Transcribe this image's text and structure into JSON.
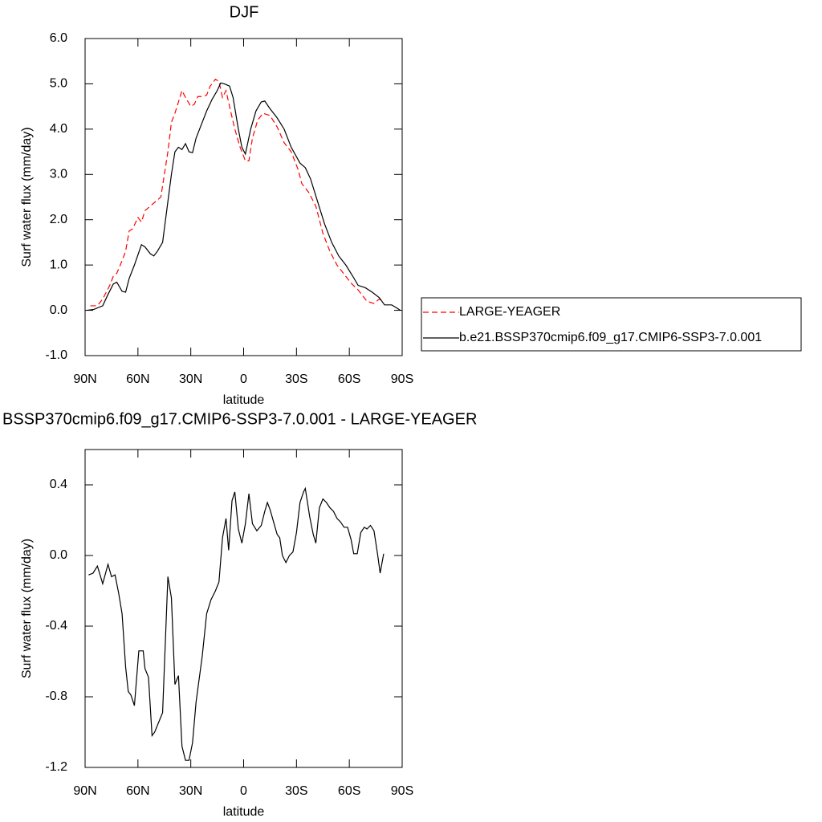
{
  "chart_data": [
    {
      "type": "line",
      "title": "DJF",
      "ylabel": "Surf water flux (mm/day)",
      "xlabel": "latitude",
      "xlim": [
        90,
        -90
      ],
      "xticks": [
        {
          "value": 90,
          "label": "90N"
        },
        {
          "value": 60,
          "label": "60N"
        },
        {
          "value": 30,
          "label": "30N"
        },
        0,
        {
          "value": -30,
          "label": "30S"
        },
        {
          "value": -60,
          "label": "60S"
        },
        {
          "value": -90,
          "label": "90S"
        }
      ],
      "ylim": [
        -1,
        6
      ],
      "yticks": [
        {
          "value": -1,
          "label": "-1.0"
        },
        {
          "value": 0,
          "label": "0.0"
        },
        {
          "value": 1,
          "label": "1.0"
        },
        {
          "value": 2,
          "label": "2.0"
        },
        {
          "value": 3,
          "label": "3.0"
        },
        {
          "value": 4,
          "label": "4.0"
        },
        {
          "value": 5,
          "label": "5.0"
        },
        {
          "value": 6,
          "label": "6.0"
        }
      ],
      "legend": "right",
      "series": [
        {
          "name": "LARGE-YEAGER",
          "color": "#ff0000",
          "dash": true,
          "x": [
            87,
            83,
            80,
            76,
            74,
            72,
            70,
            67,
            65,
            63,
            60,
            58,
            56,
            53,
            50,
            47,
            45,
            43,
            41,
            39,
            37,
            35,
            33,
            30,
            28,
            26,
            23,
            21,
            19,
            16,
            14,
            12,
            10,
            8,
            5,
            2,
            -1,
            -3,
            -5,
            -8,
            -11,
            -15,
            -19,
            -23,
            -27,
            -31,
            -33,
            -37,
            -41,
            -45,
            -49,
            -53,
            -57,
            -61,
            -65,
            -70,
            -74,
            -77,
            -79
          ],
          "values": [
            0.1,
            0.1,
            0.25,
            0.55,
            0.75,
            0.82,
            1.0,
            1.3,
            1.75,
            1.8,
            2.05,
            1.95,
            2.2,
            2.3,
            2.4,
            2.5,
            3.0,
            3.5,
            4.15,
            4.35,
            4.6,
            4.85,
            4.7,
            4.5,
            4.55,
            4.72,
            4.72,
            4.75,
            4.95,
            5.1,
            5.05,
            4.7,
            4.85,
            4.5,
            4.0,
            3.6,
            3.3,
            3.3,
            3.8,
            4.2,
            4.35,
            4.3,
            4.05,
            3.7,
            3.5,
            3.1,
            2.8,
            2.6,
            2.3,
            1.7,
            1.3,
            1.0,
            0.8,
            0.6,
            0.45,
            0.2,
            0.15,
            0.25,
            0.2
          ]
        },
        {
          "name": "b.e21.BSSP370cmip6.f09_g17.CMIP6-SSP3-7.0.001",
          "color": "#000000",
          "dash": false,
          "x": [
            89,
            85,
            80,
            77,
            74,
            72,
            69,
            67,
            65,
            62,
            58,
            56,
            53,
            51,
            49,
            46,
            44,
            41,
            39,
            37,
            35,
            33,
            31,
            29,
            27,
            24,
            21,
            18,
            15,
            13,
            11,
            8,
            6,
            3,
            1,
            -1,
            -4,
            -7,
            -10,
            -12,
            -15,
            -19,
            -23,
            -27,
            -32,
            -35,
            -38,
            -42,
            -46,
            -50,
            -54,
            -58,
            -62,
            -65,
            -69,
            -73,
            -77,
            -80,
            -84,
            -87,
            -89
          ],
          "values": [
            0.0,
            0.02,
            0.1,
            0.35,
            0.58,
            0.62,
            0.42,
            0.4,
            0.7,
            1.0,
            1.45,
            1.4,
            1.25,
            1.2,
            1.3,
            1.5,
            2.1,
            3.0,
            3.5,
            3.6,
            3.55,
            3.68,
            3.5,
            3.48,
            3.8,
            4.1,
            4.4,
            4.65,
            4.85,
            5.02,
            5.0,
            4.95,
            4.7,
            4.0,
            3.6,
            3.45,
            4.0,
            4.4,
            4.6,
            4.62,
            4.45,
            4.25,
            4.0,
            3.6,
            3.25,
            3.15,
            2.9,
            2.4,
            1.9,
            1.5,
            1.2,
            1.0,
            0.75,
            0.55,
            0.5,
            0.4,
            0.28,
            0.12,
            0.12,
            0.05,
            0.0
          ]
        }
      ]
    },
    {
      "type": "line",
      "title": "BSSP370cmip6.f09_g17.CMIP6-SSP3-7.0.001 - LARGE-YEAGER",
      "ylabel": "Surf water flux (mm/day)",
      "xlabel": "latitude",
      "xlim": [
        90,
        -90
      ],
      "xticks": [
        {
          "value": 90,
          "label": "90N"
        },
        {
          "value": 60,
          "label": "60N"
        },
        {
          "value": 30,
          "label": "30N"
        },
        0,
        {
          "value": -30,
          "label": "30S"
        },
        {
          "value": -60,
          "label": "60S"
        },
        {
          "value": -90,
          "label": "90S"
        }
      ],
      "ylim": [
        -1.2,
        0.6
      ],
      "yticks": [
        -1.2,
        -0.8,
        -0.4,
        {
          "value": 0,
          "label": "0.0"
        },
        0.4
      ],
      "series": [
        {
          "color": "#000000",
          "dash": false,
          "x": [
            88,
            85.5,
            83,
            80,
            77,
            75,
            73,
            71,
            69,
            67,
            65.5,
            64,
            62,
            59.5,
            57,
            56,
            54,
            52,
            50.5,
            46,
            43,
            41,
            39,
            37,
            35,
            33,
            31,
            29,
            27,
            23.5,
            21,
            18.5,
            16,
            14,
            12,
            10,
            8.5,
            6.6,
            5,
            3,
            1,
            -1,
            -3,
            -5,
            -7.5,
            -10,
            -12,
            -13.5,
            -15,
            -17,
            -19,
            -20.5,
            -22,
            -24,
            -26,
            -28,
            -30,
            -32,
            -34,
            -35,
            -37.5,
            -39.5,
            -41,
            -43,
            -45,
            -47,
            -49,
            -51,
            -53,
            -55,
            -57,
            -59,
            -61,
            -62.5,
            -64.5,
            -66.5,
            -68.5,
            -70,
            -72,
            -74,
            -76,
            -77.5,
            -79.5
          ],
          "values": [
            -0.11,
            -0.1,
            -0.06,
            -0.16,
            -0.05,
            -0.12,
            -0.11,
            -0.21,
            -0.33,
            -0.63,
            -0.77,
            -0.79,
            -0.85,
            -0.54,
            -0.54,
            -0.64,
            -0.69,
            -1.02,
            -1.0,
            -0.89,
            -0.12,
            -0.24,
            -0.73,
            -0.68,
            -1.08,
            -1.16,
            -1.16,
            -1.06,
            -0.83,
            -0.57,
            -0.33,
            -0.25,
            -0.2,
            -0.15,
            0.1,
            0.21,
            0.03,
            0.31,
            0.36,
            0.15,
            0.07,
            0.18,
            0.35,
            0.18,
            0.14,
            0.17,
            0.25,
            0.3,
            0.26,
            0.19,
            0.12,
            0.1,
            0.0,
            -0.04,
            0.0,
            0.02,
            0.13,
            0.3,
            0.36,
            0.38,
            0.22,
            0.12,
            0.07,
            0.27,
            0.32,
            0.3,
            0.27,
            0.25,
            0.21,
            0.19,
            0.16,
            0.16,
            0.09,
            0.01,
            0.01,
            0.13,
            0.16,
            0.15,
            0.17,
            0.14,
            0.01,
            -0.1,
            0.01
          ]
        }
      ]
    }
  ]
}
